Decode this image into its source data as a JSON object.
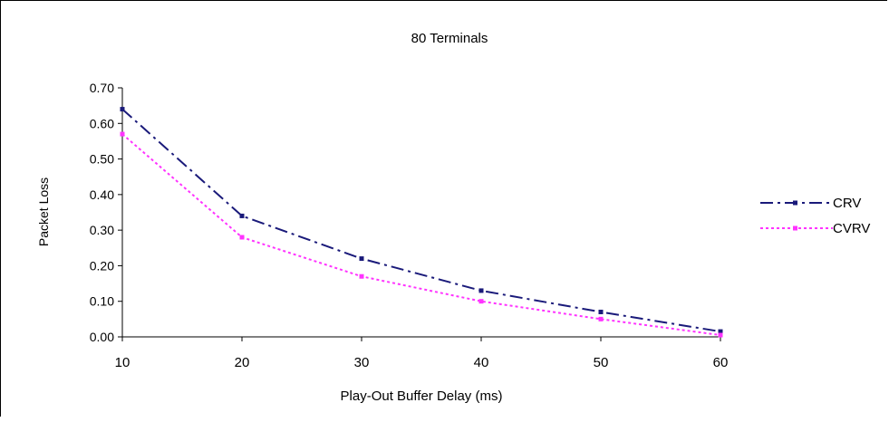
{
  "chart_data": {
    "type": "line",
    "title": "80 Terminals",
    "xlabel": "Play-Out Buffer Delay (ms)",
    "ylabel": "Packet Loss",
    "x": [
      10,
      20,
      30,
      40,
      50,
      60
    ],
    "xlim": [
      10,
      60
    ],
    "ylim": [
      0,
      0.7
    ],
    "x_ticks": [
      "10",
      "20",
      "30",
      "40",
      "50",
      "60"
    ],
    "y_ticks": [
      "0.00",
      "0.10",
      "0.20",
      "0.30",
      "0.40",
      "0.50",
      "0.60",
      "0.70"
    ],
    "grid": false,
    "legend_position": "right",
    "series": [
      {
        "name": "CRV",
        "values": [
          0.64,
          0.34,
          0.22,
          0.13,
          0.07,
          0.015
        ],
        "color": "#1a1a7a",
        "style": "dash-dot"
      },
      {
        "name": "CVRV",
        "values": [
          0.57,
          0.28,
          0.17,
          0.1,
          0.05,
          0.005
        ],
        "color": "#ff33ff",
        "style": "dotted"
      }
    ]
  }
}
